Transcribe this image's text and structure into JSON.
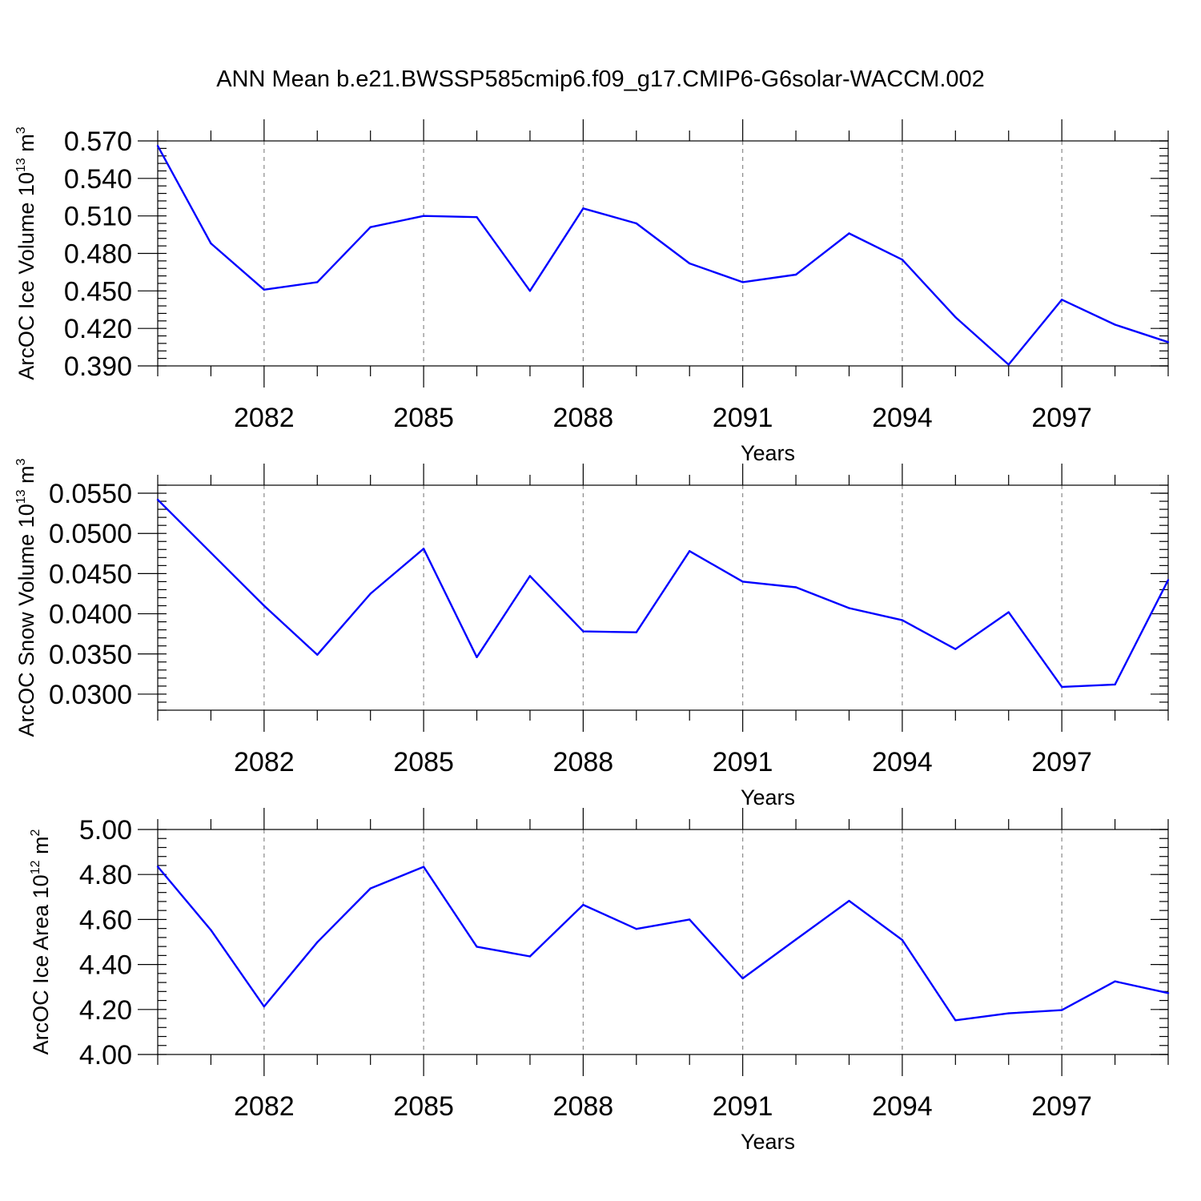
{
  "figure": {
    "title": "ANN Mean b.e21.BWSSP585cmip6.f09_g17.CMIP6-G6solar-WACCM.002"
  },
  "colors": {
    "series": "#0000ff",
    "grid": "#8a8a8a",
    "axis": "#000000"
  },
  "chart_data": [
    {
      "type": "line",
      "ylabel": {
        "main": "ArcOC Ice Volume 10",
        "exp": "13",
        "unit": " m",
        "unit_exp": "3"
      },
      "xlabel": "Years",
      "xlim": [
        2080,
        2099
      ],
      "x_ticks": [
        2082,
        2085,
        2088,
        2091,
        2094,
        2097
      ],
      "x_tick_labels": [
        "2082",
        "2085",
        "2088",
        "2091",
        "2094",
        "2097"
      ],
      "ylim": [
        0.39,
        0.57
      ],
      "y_ticks": [
        0.39,
        0.42,
        0.45,
        0.48,
        0.51,
        0.54,
        0.57
      ],
      "y_tick_labels": [
        "0.390",
        "0.420",
        "0.450",
        "0.480",
        "0.510",
        "0.540",
        "0.570"
      ],
      "y_minor_step": 0.006,
      "grid": "x-dashed",
      "x": [
        2080,
        2081,
        2082,
        2083,
        2084,
        2085,
        2086,
        2087,
        2088,
        2089,
        2090,
        2091,
        2092,
        2093,
        2094,
        2095,
        2096,
        2097,
        2098,
        2099
      ],
      "values": [
        0.566,
        0.488,
        0.451,
        0.457,
        0.501,
        0.51,
        0.509,
        0.45,
        0.516,
        0.504,
        0.472,
        0.457,
        0.463,
        0.496,
        0.475,
        0.429,
        0.391,
        0.443,
        0.423,
        0.409
      ]
    },
    {
      "type": "line",
      "ylabel": {
        "main": "ArcOC Snow Volume 10",
        "exp": "13",
        "unit": " m",
        "unit_exp": "3"
      },
      "xlabel": "Years",
      "xlim": [
        2080,
        2099
      ],
      "x_ticks": [
        2082,
        2085,
        2088,
        2091,
        2094,
        2097
      ],
      "x_tick_labels": [
        "2082",
        "2085",
        "2088",
        "2091",
        "2094",
        "2097"
      ],
      "ylim": [
        0.028,
        0.056
      ],
      "y_ticks": [
        0.03,
        0.035,
        0.04,
        0.045,
        0.05,
        0.055
      ],
      "y_tick_labels": [
        "0.0300",
        "0.0350",
        "0.0400",
        "0.0450",
        "0.0500",
        "0.0550"
      ],
      "y_minor_step": 0.001,
      "grid": "x-dashed",
      "x": [
        2080,
        2081,
        2082,
        2083,
        2084,
        2085,
        2086,
        2087,
        2088,
        2089,
        2090,
        2091,
        2092,
        2093,
        2094,
        2095,
        2096,
        2097,
        2098,
        2099
      ],
      "values": [
        0.0542,
        0.0476,
        0.041,
        0.0349,
        0.0425,
        0.0481,
        0.0346,
        0.0447,
        0.0378,
        0.0377,
        0.0478,
        0.044,
        0.0433,
        0.0407,
        0.0392,
        0.0356,
        0.0402,
        0.0309,
        0.0312,
        0.0442
      ]
    },
    {
      "type": "line",
      "ylabel": {
        "main": "ArcOC Ice Area 10",
        "exp": "12",
        "unit": " m",
        "unit_exp": "2"
      },
      "xlabel": "Years",
      "xlim": [
        2080,
        2099
      ],
      "x_ticks": [
        2082,
        2085,
        2088,
        2091,
        2094,
        2097
      ],
      "x_tick_labels": [
        "2082",
        "2085",
        "2088",
        "2091",
        "2094",
        "2097"
      ],
      "ylim": [
        4.0,
        5.0
      ],
      "y_ticks": [
        4.0,
        4.2,
        4.4,
        4.6,
        4.8,
        5.0
      ],
      "y_tick_labels": [
        "4.00",
        "4.20",
        "4.40",
        "4.60",
        "4.80",
        "5.00"
      ],
      "y_minor_step": 0.04,
      "grid": "x-dashed",
      "x": [
        2080,
        2081,
        2082,
        2083,
        2084,
        2085,
        2086,
        2087,
        2088,
        2089,
        2090,
        2091,
        2092,
        2093,
        2094,
        2095,
        2096,
        2097,
        2098,
        2099
      ],
      "values": [
        4.835,
        4.553,
        4.213,
        4.499,
        4.738,
        4.834,
        4.479,
        4.436,
        4.665,
        4.558,
        4.6,
        4.338,
        4.511,
        4.683,
        4.509,
        4.152,
        4.183,
        4.197,
        4.325,
        4.273
      ]
    }
  ]
}
